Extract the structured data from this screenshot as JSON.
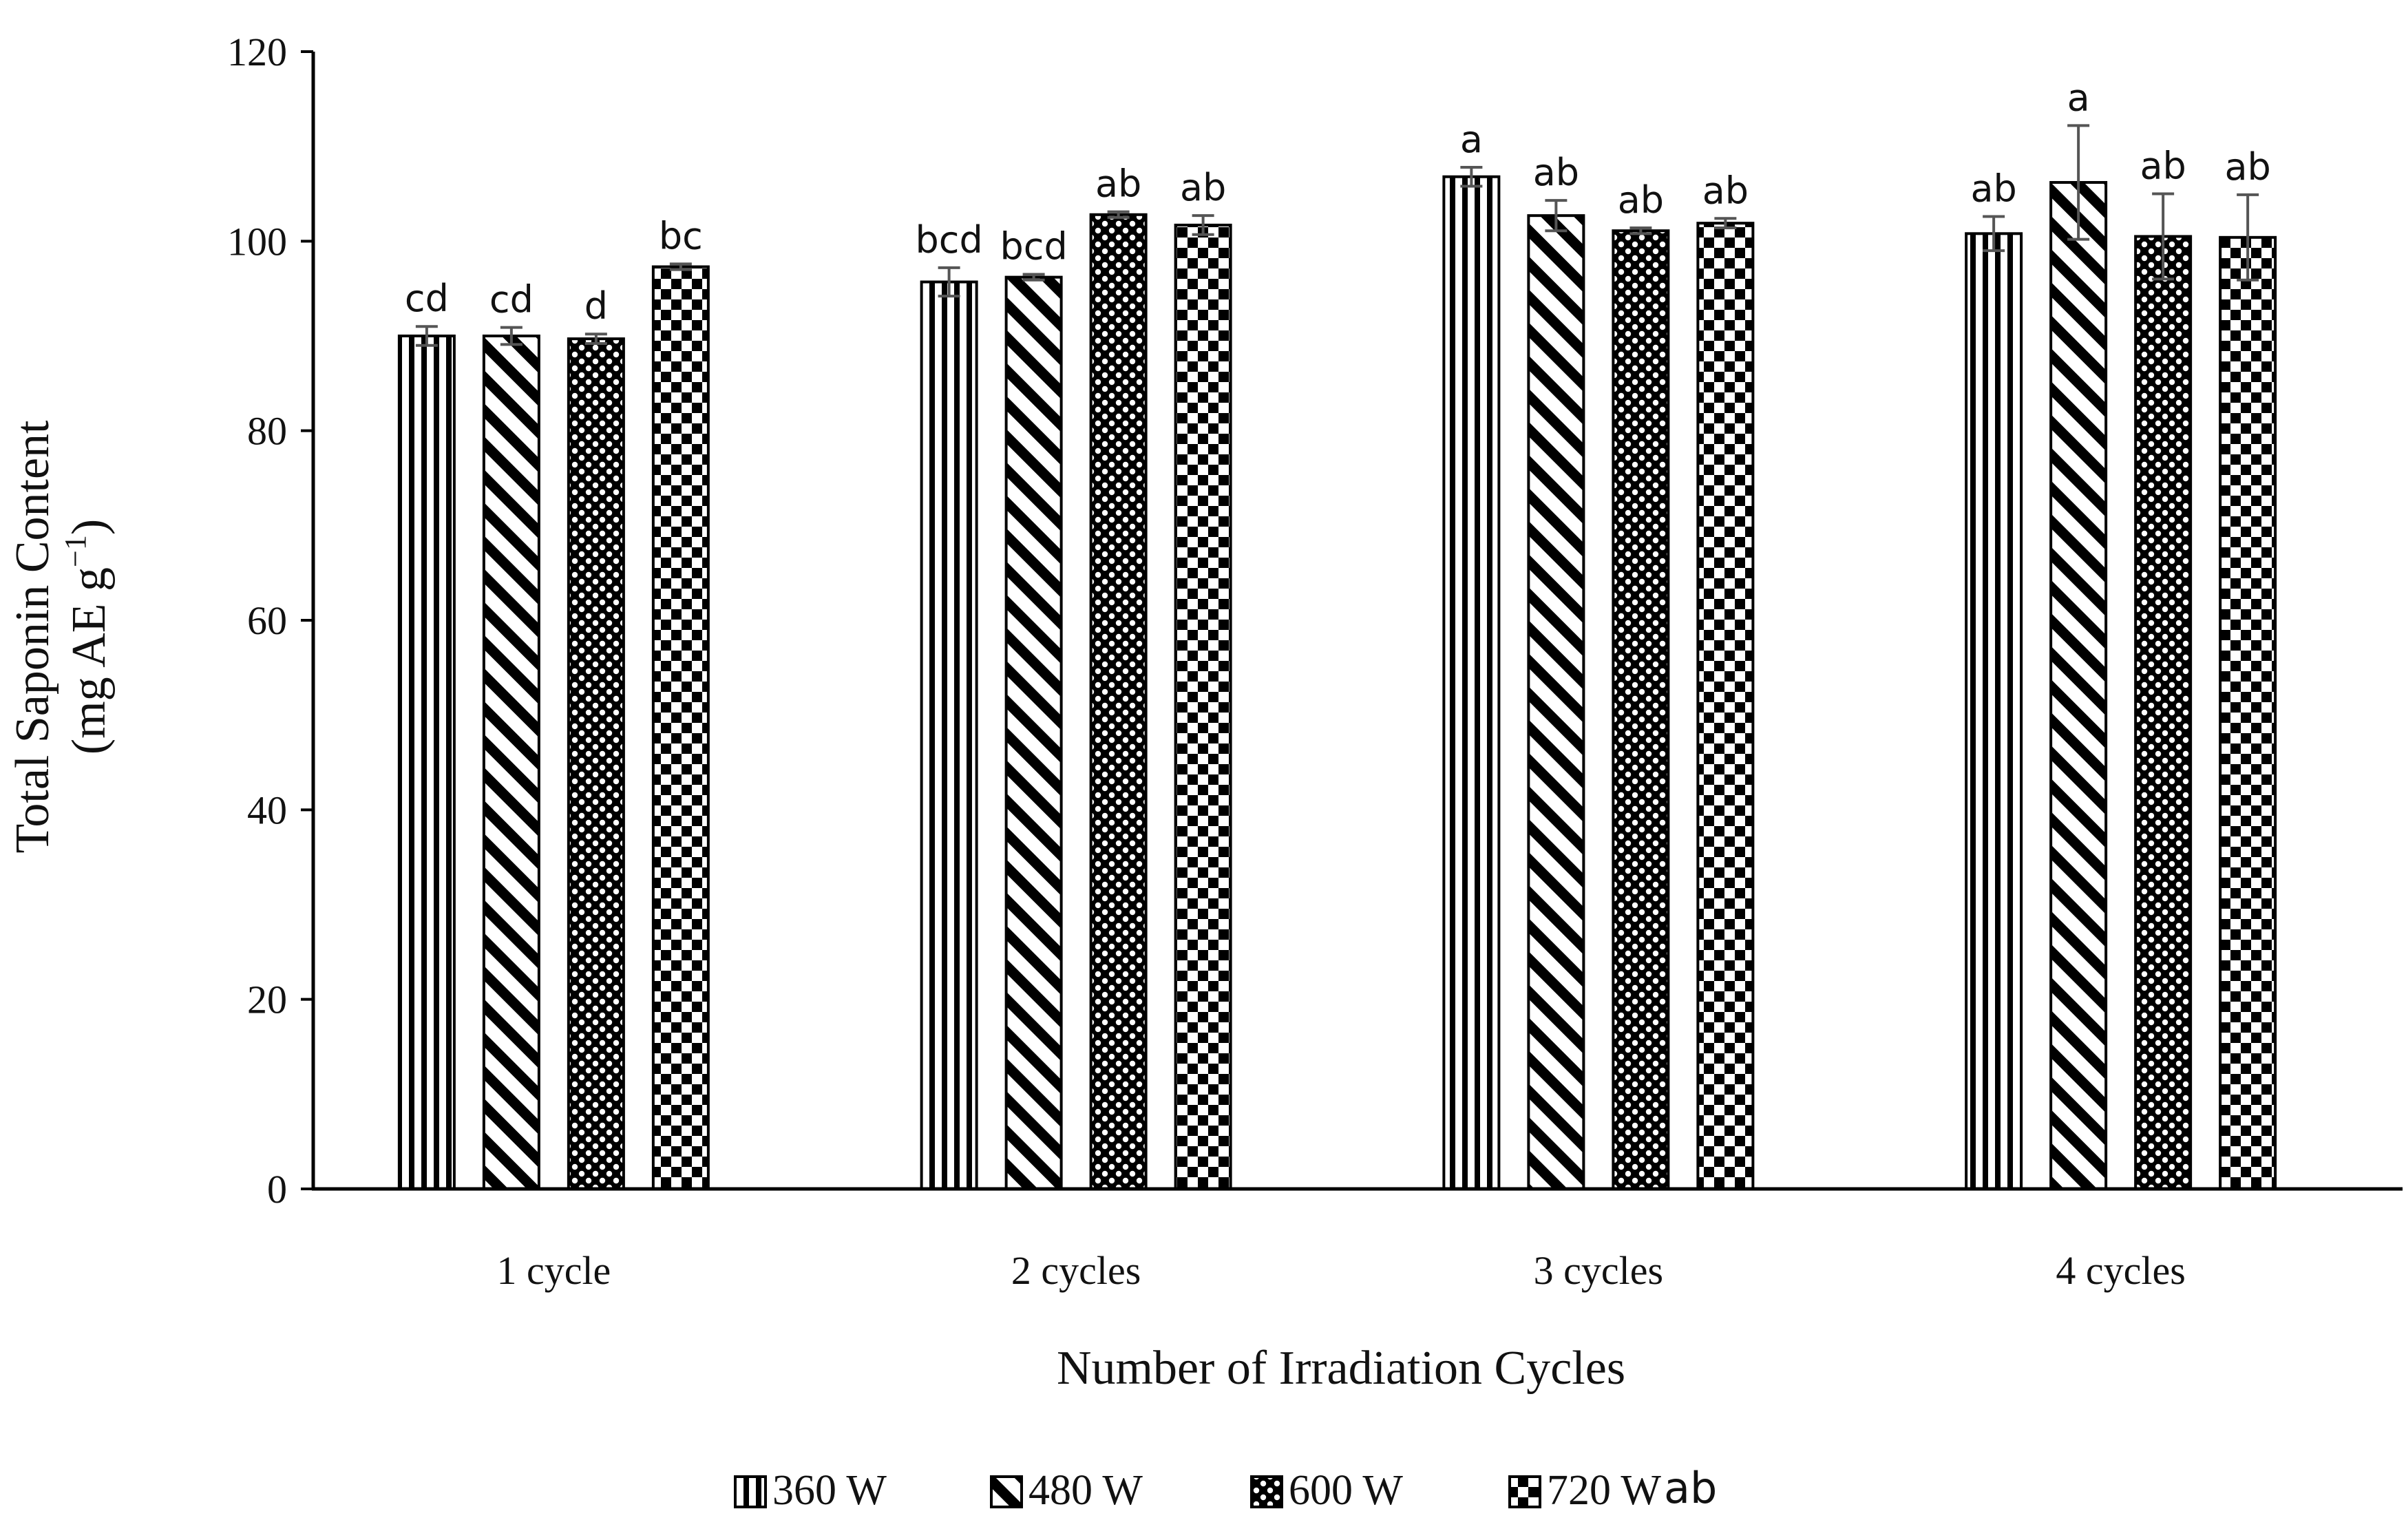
{
  "chart_data": {
    "type": "bar",
    "title": "",
    "xlabel": "Number of Irradiation Cycles",
    "ylabel_line1": "Total Saponin Content",
    "ylabel_line2_prefix": "(mg AE g",
    "ylabel_line2_sup": "−1",
    "ylabel_line2_suffix": ")",
    "ylim": [
      0,
      120
    ],
    "yticks": [
      "0",
      "20",
      "40",
      "60",
      "80",
      "100",
      "120"
    ],
    "categories": [
      "1 cycle",
      "2 cycles",
      "3 cycles",
      "4 cycles"
    ],
    "series": [
      {
        "name": "360 W",
        "pattern": "vertical-lines",
        "values": [
          90.0,
          95.7,
          106.8,
          100.8
        ],
        "errors": [
          1.0,
          1.5,
          1.0,
          1.8
        ],
        "labels": [
          "cd",
          "bcd",
          "a",
          "ab"
        ]
      },
      {
        "name": "480 W",
        "pattern": "diagonal-lines",
        "values": [
          90.0,
          96.2,
          102.7,
          106.2
        ],
        "errors": [
          0.9,
          0.3,
          1.6,
          6.0
        ],
        "labels": [
          "cd",
          "bcd",
          "ab",
          "a"
        ]
      },
      {
        "name": "600 W",
        "pattern": "dots",
        "values": [
          89.7,
          102.8,
          101.1,
          100.5
        ],
        "errors": [
          0.5,
          0.3,
          0.3,
          4.5
        ],
        "labels": [
          "d",
          "ab",
          "ab",
          "ab"
        ]
      },
      {
        "name": "720 W",
        "pattern": "checkerboard",
        "values": [
          97.3,
          101.7,
          101.9,
          100.4
        ],
        "errors": [
          0.3,
          1.0,
          0.5,
          4.5
        ],
        "labels": [
          "bc",
          "ab",
          "ab",
          "ab"
        ]
      }
    ],
    "legend_position": "bottom",
    "legend_extra_text": "ab",
    "grid": false
  },
  "colors": {
    "ink": "#000000",
    "background": "#ffffff",
    "error_bar": "#555555"
  }
}
